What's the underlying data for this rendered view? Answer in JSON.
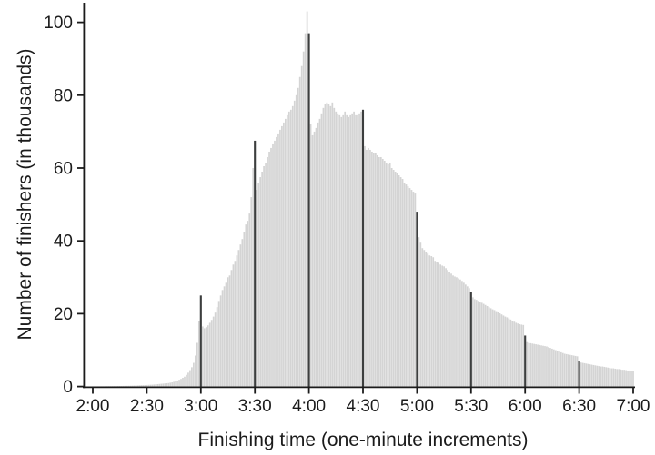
{
  "chart_data": {
    "type": "bar",
    "title": "",
    "xlabel": "Finishing time (one-minute increments)",
    "ylabel": "Number of finishers (in thousands)",
    "bin_width_minutes": 1,
    "x_start_minute": 120,
    "x_end_minute": 420,
    "x_tick_labels": [
      "2:00",
      "2:30",
      "3:00",
      "3:30",
      "4:00",
      "4:30",
      "5:00",
      "5:30",
      "6:00",
      "6:30",
      "7:00"
    ],
    "x_tick_minutes": [
      120,
      150,
      180,
      210,
      240,
      270,
      300,
      330,
      360,
      390,
      420
    ],
    "y_ticks": [
      0,
      20,
      40,
      60,
      80,
      100
    ],
    "ylim": [
      0,
      104
    ],
    "grid": "off",
    "legend": "none",
    "spike_minutes": [
      180,
      210,
      240,
      270,
      300,
      330,
      360,
      390
    ],
    "values": [
      0.05,
      0.05,
      0.05,
      0.06,
      0.06,
      0.07,
      0.07,
      0.08,
      0.09,
      0.1,
      0.1,
      0.11,
      0.12,
      0.13,
      0.14,
      0.15,
      0.16,
      0.17,
      0.18,
      0.19,
      0.2,
      0.22,
      0.24,
      0.26,
      0.28,
      0.3,
      0.33,
      0.36,
      0.38,
      0.4,
      0.42,
      0.45,
      0.48,
      0.5,
      0.55,
      0.6,
      0.65,
      0.7,
      0.75,
      0.8,
      0.85,
      0.9,
      0.95,
      1.05,
      1.15,
      1.3,
      1.45,
      1.65,
      1.85,
      2.1,
      2.4,
      2.7,
      3.2,
      3.8,
      4.5,
      5.3,
      6.5,
      8.5,
      12,
      18,
      25,
      16.5,
      16,
      16.3,
      16.8,
      17.5,
      18.3,
      19.2,
      20.3,
      21.8,
      23.5,
      25,
      26.5,
      27.5,
      28.5,
      30,
      30.5,
      32,
      33.5,
      34.5,
      36,
      37.5,
      39,
      40.5,
      42.5,
      44.5,
      45.5,
      47.5,
      52,
      60,
      67.5,
      54,
      56,
      57.5,
      59,
      60.5,
      61.5,
      63,
      64.5,
      65.5,
      66.5,
      67.5,
      68.5,
      69.5,
      70.5,
      71.5,
      72.5,
      73.5,
      74.5,
      75.5,
      76,
      77,
      78.5,
      80,
      82,
      85,
      88,
      92,
      97,
      103,
      97,
      72,
      69,
      70,
      71,
      72.5,
      73.5,
      75,
      76.5,
      77.5,
      78,
      77.5,
      77,
      78,
      76.5,
      75.5,
      75,
      74.5,
      74,
      74.5,
      75.5,
      74.5,
      74,
      74.5,
      75,
      75.5,
      74.5,
      74.5,
      75,
      75.5,
      76,
      66,
      65,
      65.5,
      65,
      64.5,
      64,
      64,
      63.5,
      63,
      63,
      62.5,
      62,
      61.5,
      61,
      61.5,
      60,
      59.5,
      59,
      58.5,
      58,
      57.5,
      57,
      56,
      55.5,
      55,
      54.5,
      54,
      53.5,
      53,
      48,
      41,
      39.5,
      38,
      37.5,
      37,
      36.5,
      36,
      35.8,
      35.5,
      34.5,
      34.2,
      34,
      33.5,
      33.2,
      33,
      32.5,
      32,
      31.5,
      31,
      30.5,
      30.2,
      30,
      29.7,
      29.4,
      29,
      28.5,
      28,
      27.5,
      27,
      26,
      24.5,
      24,
      23.8,
      23.5,
      23.2,
      23,
      22.7,
      22.4,
      22.1,
      21.8,
      21.5,
      21.2,
      21,
      20.7,
      20.4,
      20.1,
      19.8,
      19.5,
      19.2,
      19,
      18.7,
      18.4,
      18.1,
      17.8,
      17.5,
      17.3,
      17.1,
      17,
      16.9,
      14,
      12.2,
      12,
      11.9,
      11.8,
      11.7,
      11.6,
      11.5,
      11.4,
      11.3,
      11.2,
      11.1,
      11,
      10.8,
      10.6,
      10.4,
      10.2,
      10,
      9.8,
      9.6,
      9.4,
      9.2,
      9,
      8.9,
      8.8,
      8.7,
      8.6,
      8.5,
      8.4,
      8.3,
      7,
      6.6,
      6.5,
      6.4,
      6.3,
      6.2,
      6.1,
      6,
      5.9,
      5.8,
      5.7,
      5.6,
      5.5,
      5.5,
      5.4,
      5.3,
      5.2,
      5.1,
      5,
      5,
      4.9,
      4.8,
      4.8,
      4.7,
      4.6,
      4.6,
      4.5,
      4.4,
      4.4,
      4.3,
      4.2
    ],
    "colors": {
      "bar": "#d4d4d4",
      "spike": "#3c3e3e",
      "axis": "#1b1b1b",
      "text": "#1b1b1b",
      "background": "#ffffff"
    }
  }
}
